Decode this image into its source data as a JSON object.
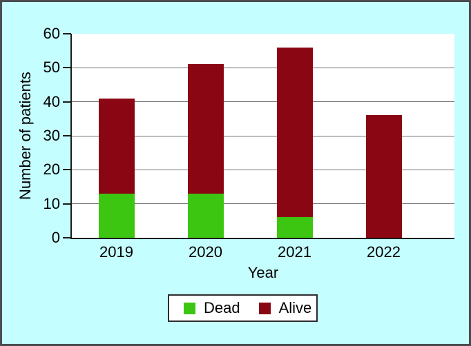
{
  "chart_data": {
    "type": "bar",
    "stacked": true,
    "title": "",
    "xlabel": "Year",
    "ylabel": "Number of patients",
    "categories": [
      "2019",
      "2020",
      "2021",
      "2022"
    ],
    "series": [
      {
        "name": "Dead",
        "color": "#3dc611",
        "values": [
          13,
          13,
          6,
          0
        ]
      },
      {
        "name": "Alive",
        "color": "#8b0613",
        "values": [
          28,
          38,
          50,
          36
        ]
      }
    ],
    "totals": [
      41,
      51,
      56,
      36
    ],
    "ylim": [
      0,
      60
    ],
    "yticks": [
      0,
      10,
      20,
      30,
      40,
      50,
      60
    ],
    "grid": true,
    "legend_position": "bottom"
  },
  "colors": {
    "page_background": "#c5feff",
    "plot_background": "#ffffff",
    "gridline": "#6e6e6e",
    "axis": "#1a1a1a",
    "text": "#000000",
    "frame_border": "#4b4c50",
    "legend_border": "#2c2c2e"
  }
}
